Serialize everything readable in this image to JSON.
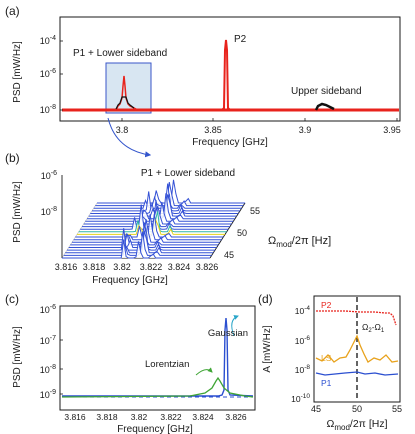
{
  "panels": {
    "a": {
      "label": "(a)",
      "xlabel": "Frequency [GHz]",
      "ylabel": "PSD [mW/Hz]",
      "xticks": [
        "3.8",
        "3.85",
        "3.9",
        "3.95"
      ],
      "yticks": [
        {
          "base": "10",
          "exp": "-4"
        },
        {
          "base": "10",
          "exp": "-6"
        },
        {
          "base": "10",
          "exp": "-8"
        }
      ],
      "annotations": [
        "P2",
        "P1 + Lower sideband",
        "Upper sideband"
      ]
    },
    "b": {
      "label": "(b)",
      "title": "P1 + Lower sideband",
      "xlabel": "Frequency [GHz]",
      "ylabel": "PSD [mW/Hz]",
      "ylabel_right_main": "Ω",
      "ylabel_right_sub": "mod",
      "ylabel_right_rest": "/2π [Hz]",
      "xticks": [
        "3.816",
        "3.818",
        "3.82",
        "3.822",
        "3.824",
        "3.826"
      ],
      "yticks": [
        {
          "base": "10",
          "exp": "-6"
        },
        {
          "base": "10",
          "exp": "-8"
        }
      ],
      "depth_ticks": [
        "45",
        "50",
        "55"
      ]
    },
    "c": {
      "label": "(c)",
      "xlabel": "Frequency [GHz]",
      "ylabel": "PSD [mW/Hz]",
      "xticks": [
        "3.816",
        "3.818",
        "3.82",
        "3.822",
        "3.824",
        "3.826"
      ],
      "yticks": [
        {
          "base": "10",
          "exp": "-6"
        },
        {
          "base": "10",
          "exp": "-7"
        },
        {
          "base": "10",
          "exp": "-8"
        },
        {
          "base": "10",
          "exp": "-9"
        }
      ],
      "annotations": [
        "Gaussian",
        "Lorentzian"
      ]
    },
    "d": {
      "label": "(d)",
      "ylabel": "A [mW/Hz]",
      "xlabel_main": "Ω",
      "xlabel_sub": "mod",
      "xlabel_rest": "/2π [Hz]",
      "xticks": [
        "45",
        "50",
        "55"
      ],
      "yticks": [
        {
          "base": "10",
          "exp": "-4"
        },
        {
          "base": "10",
          "exp": "-6"
        },
        {
          "base": "10",
          "exp": "-8"
        },
        {
          "base": "10",
          "exp": "-10"
        }
      ],
      "annotations": [
        "P2",
        "LS",
        "P1",
        "Ω2-Ω1"
      ]
    }
  },
  "colors": {
    "red": "#e8231c",
    "black": "#111111",
    "blue": "#2b4fd0",
    "green": "#3fa535",
    "orange": "#e8a21c",
    "box": "#d8e6f2"
  },
  "chart_data": [
    {
      "type": "line",
      "panel": "a",
      "title": "",
      "xlabel": "Frequency [GHz]",
      "ylabel": "PSD [mW/Hz]",
      "yscale": "log",
      "xlim": [
        3.78,
        3.95
      ],
      "ylim": [
        1e-09,
        0.001
      ],
      "series": [
        {
          "x": [
            3.78,
            3.81,
            3.817,
            3.82,
            3.8215,
            3.823,
            3.83,
            3.86,
            3.866,
            3.8675,
            3.869,
            3.9,
            3.915,
            3.922,
            3.93,
            3.95
          ],
          "y": [
            1e-08,
            1e-08,
            2e-08,
            1.5e-07,
            8e-07,
            1.5e-07,
            1e-08,
            1e-08,
            2e-08,
            0.0001,
            2e-08,
            1e-08,
            1.5e-08,
            2e-08,
            1.5e-08,
            1e-08
          ]
        }
      ]
    },
    {
      "type": "line",
      "panel": "b",
      "title": "P1 + Lower sideband",
      "xlabel": "Frequency [GHz]",
      "ylabel": "PSD [mW/Hz]",
      "yscale": "log",
      "xlim": [
        3.816,
        3.827
      ],
      "zlabel": "Ωmod/2π [Hz]",
      "zlim": [
        45,
        55
      ]
    },
    {
      "type": "line",
      "panel": "c",
      "xlabel": "Frequency [GHz]",
      "ylabel": "PSD [mW/Hz]",
      "yscale": "log",
      "xlim": [
        3.815,
        3.827
      ],
      "ylim": [
        3e-10,
        1e-06
      ],
      "series": [
        {
          "name": "Gaussian",
          "x": [
            3.815,
            3.82,
            3.8212,
            3.8216,
            3.822,
            3.827
          ],
          "y": [
            1e-09,
            1e-09,
            1.2e-09,
            4e-07,
            1.2e-09,
            1e-09
          ]
        },
        {
          "name": "Lorentzian",
          "x": [
            3.815,
            3.819,
            3.82,
            3.8208,
            3.8216,
            3.823,
            3.827
          ],
          "y": [
            1e-09,
            1.1e-09,
            1.5e-09,
            3e-09,
            1.5e-09,
            1.1e-09,
            1e-09
          ]
        }
      ]
    },
    {
      "type": "line",
      "panel": "d",
      "xlabel": "Ωmod/2π [Hz]",
      "ylabel": "A [mW/Hz]",
      "yscale": "log",
      "xlim": [
        45,
        55
      ],
      "ylim": [
        1e-10,
        0.001
      ],
      "series": [
        {
          "name": "P2",
          "x": [
            45,
            47,
            49,
            51,
            53,
            54,
            55
          ],
          "y": [
            0.0001,
            0.0001,
            9e-05,
            9e-05,
            8e-05,
            7e-05,
            2e-05
          ]
        },
        {
          "name": "LS",
          "x": [
            45,
            46,
            47,
            48,
            49,
            49.5,
            50,
            50.5,
            51,
            52,
            53,
            54,
            55
          ],
          "y": [
            1e-07,
            8e-08,
            2e-07,
            6e-08,
            9e-08,
            3e-07,
            8e-07,
            2e-07,
            5e-08,
            1e-07,
            6e-08,
            8e-08,
            5e-08
          ]
        },
        {
          "name": "P1",
          "x": [
            45,
            47,
            49,
            50,
            51,
            53,
            55
          ],
          "y": [
            1.5e-08,
            1e-08,
            1.2e-08,
            1.5e-08,
            1e-08,
            1.2e-08,
            1e-08
          ]
        }
      ],
      "vline": 50
    }
  ]
}
